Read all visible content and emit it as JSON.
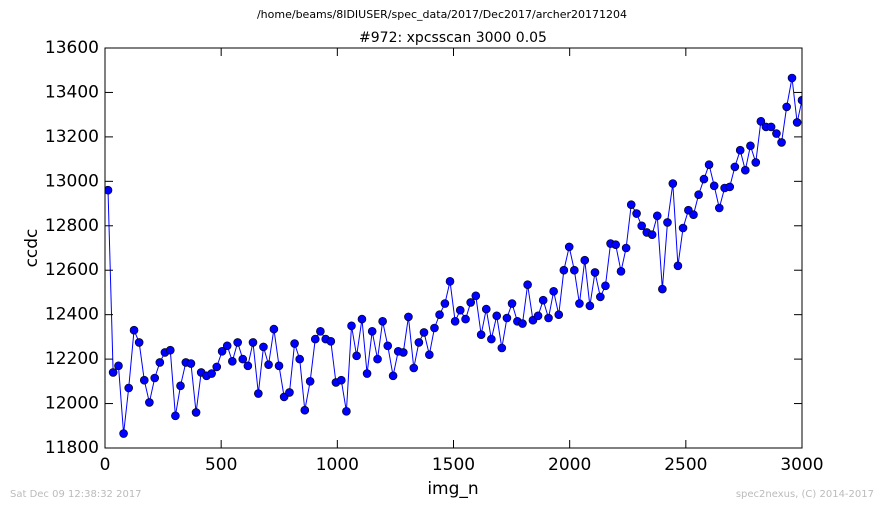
{
  "chart_data": {
    "type": "line",
    "suptitle": "/home/beams/8IDIUSER/spec_data/2017/Dec2017/archer20171204",
    "title": "#972: xpcsscan 3000 0.05",
    "xlabel": "img_n",
    "ylabel": "ccdc",
    "footer_left": "Sat Dec 09 12:38:32 2017",
    "footer_right": "spec2nexus, (C) 2014-2017",
    "xlim": [
      0,
      3000
    ],
    "xticks": [
      0,
      500,
      1000,
      1500,
      2000,
      2500,
      3000
    ],
    "ylim": [
      11800,
      13600
    ],
    "yticks": [
      11800,
      12000,
      12200,
      12400,
      12600,
      12800,
      13000,
      13200,
      13400,
      13600
    ],
    "x": [
      13,
      35,
      58,
      80,
      102,
      125,
      147,
      169,
      191,
      214,
      236,
      258,
      281,
      303,
      325,
      348,
      370,
      392,
      414,
      437,
      459,
      481,
      504,
      526,
      548,
      571,
      593,
      615,
      637,
      660,
      682,
      704,
      727,
      749,
      771,
      794,
      816,
      838,
      860,
      883,
      905,
      927,
      950,
      972,
      994,
      1017,
      1039,
      1061,
      1083,
      1106,
      1128,
      1150,
      1173,
      1195,
      1217,
      1240,
      1262,
      1284,
      1306,
      1329,
      1351,
      1373,
      1396,
      1418,
      1440,
      1463,
      1485,
      1507,
      1529,
      1552,
      1574,
      1596,
      1619,
      1641,
      1663,
      1686,
      1708,
      1730,
      1752,
      1775,
      1797,
      1819,
      1842,
      1864,
      1886,
      1909,
      1931,
      1953,
      1975,
      1998,
      2020,
      2042,
      2065,
      2087,
      2109,
      2132,
      2154,
      2176,
      2198,
      2221,
      2243,
      2265,
      2288,
      2310,
      2332,
      2355,
      2377,
      2399,
      2421,
      2444,
      2466,
      2488,
      2511,
      2533,
      2555,
      2578,
      2600,
      2622,
      2644,
      2667,
      2689,
      2711,
      2734,
      2756,
      2778,
      2801,
      2823,
      2845,
      2867,
      2890,
      2912,
      2934,
      2957,
      2979,
      3000
    ],
    "series": [
      {
        "name": "ccdc",
        "color": "#0000ff",
        "values": [
          12960,
          12140,
          12170,
          11865,
          12070,
          12330,
          12275,
          12105,
          12005,
          12115,
          12185,
          12230,
          12240,
          11945,
          12080,
          12185,
          12180,
          11960,
          12140,
          12125,
          12135,
          12165,
          12235,
          12260,
          12190,
          12275,
          12200,
          12170,
          12275,
          12045,
          12255,
          12175,
          12335,
          12170,
          12030,
          12050,
          12270,
          12200,
          11970,
          12100,
          12290,
          12325,
          12290,
          12280,
          12095,
          12105,
          11965,
          12350,
          12215,
          12380,
          12135,
          12325,
          12200,
          12370,
          12260,
          12125,
          12235,
          12230,
          12390,
          12160,
          12275,
          12320,
          12220,
          12340,
          12400,
          12450,
          12550,
          12370,
          12420,
          12380,
          12455,
          12485,
          12310,
          12425,
          12290,
          12395,
          12250,
          12385,
          12450,
          12370,
          12360,
          12535,
          12375,
          12395,
          12465,
          12385,
          12505,
          12400,
          12600,
          12705,
          12600,
          12450,
          12645,
          12440,
          12590,
          12480,
          12530,
          12720,
          12715,
          12595,
          12700,
          12895,
          12855,
          12800,
          12770,
          12760,
          12845,
          12515,
          12815,
          12990,
          12620,
          12790,
          12870,
          12850,
          12940,
          13010,
          13075,
          12980,
          12880,
          12970,
          12975,
          13065,
          13140,
          13050,
          13160,
          13085,
          13270,
          13245,
          13245,
          13215,
          13175,
          13335,
          13465,
          13265,
          13365
        ]
      }
    ]
  }
}
